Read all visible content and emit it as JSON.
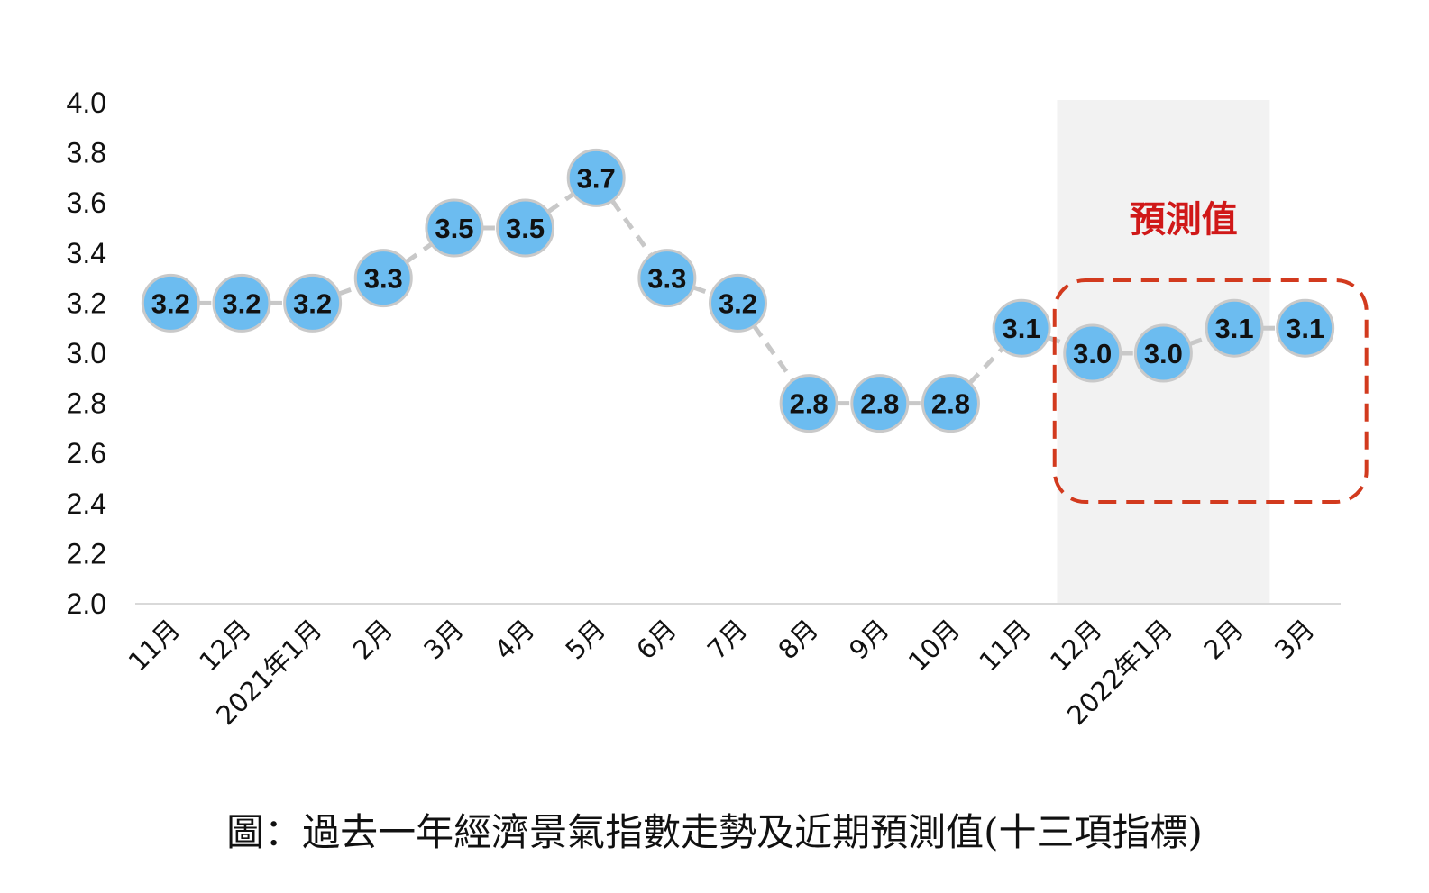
{
  "caption": "圖：過去一年經濟景氣指數走勢及近期預測值(十三項指標)",
  "colors": {
    "point_fill": "#6cbcf0",
    "point_stroke": "#c9c9c9",
    "connector": "#c8c8c8",
    "forecast_shade": "#f2f2f2",
    "forecast_box": "#d23a1e",
    "forecast_label": "#d01818",
    "axis": "#d9d9d9"
  },
  "chart_data": {
    "type": "line",
    "categories": [
      "11月",
      "12月",
      "2021年1月",
      "2月",
      "3月",
      "4月",
      "5月",
      "6月",
      "7月",
      "8月",
      "9月",
      "10月",
      "11月",
      "12月",
      "2022年1月",
      "2月",
      "3月"
    ],
    "series": [
      {
        "values": [
          3.2,
          3.2,
          3.2,
          3.3,
          3.5,
          3.5,
          3.7,
          3.3,
          3.2,
          2.8,
          2.8,
          2.8,
          3.1,
          3.0,
          3.0,
          3.1,
          3.1
        ]
      }
    ],
    "data_labels": [
      "3.2",
      "3.2",
      "3.2",
      "3.3",
      "3.5",
      "3.5",
      "3.7",
      "3.3",
      "3.2",
      "2.8",
      "2.8",
      "2.8",
      "3.1",
      "3.0",
      "3.0",
      "3.1",
      "3.1"
    ],
    "ylim": [
      2.0,
      4.0
    ],
    "yticks": [
      "2.0",
      "2.2",
      "2.4",
      "2.6",
      "2.8",
      "3.0",
      "3.2",
      "3.4",
      "3.6",
      "3.8",
      "4.0"
    ],
    "grid": false,
    "legend": "none",
    "forecast": {
      "label": "預測值",
      "start_category": "12月",
      "end_category": "3月",
      "shaded_categories": [
        "12月",
        "2022年1月",
        "2月"
      ]
    }
  }
}
